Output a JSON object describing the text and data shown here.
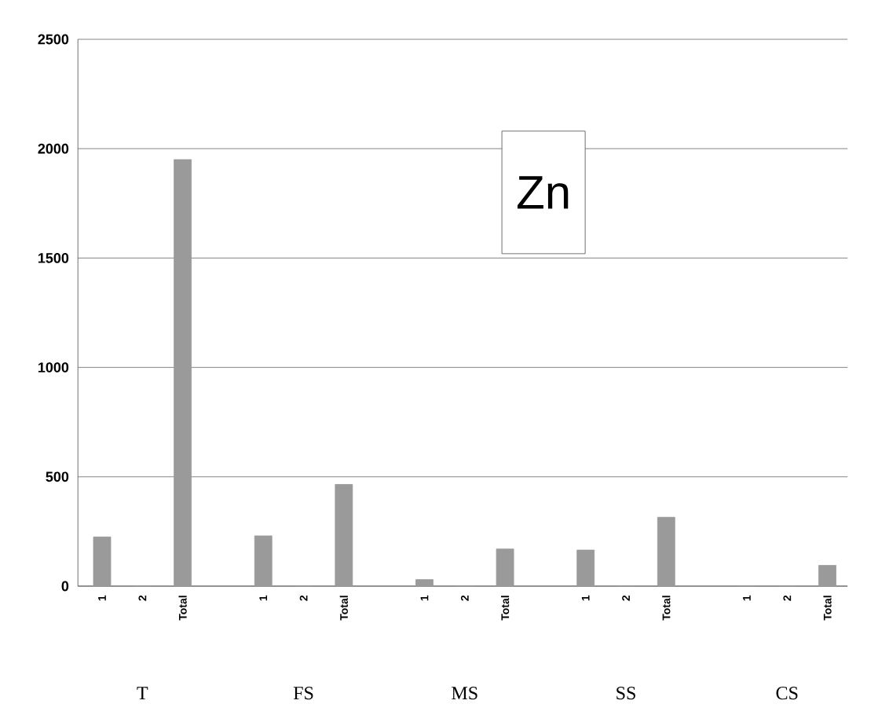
{
  "chart_data": {
    "type": "bar",
    "title": "Zn",
    "categories": [
      "1",
      "2",
      "Total",
      null,
      "1",
      "2",
      "Total",
      null,
      "1",
      "2",
      "Total",
      null,
      "1",
      "2",
      "Total",
      null,
      "1",
      "2",
      "Total"
    ],
    "values": [
      225,
      0,
      1950,
      null,
      230,
      0,
      465,
      null,
      30,
      0,
      170,
      null,
      165,
      0,
      315,
      null,
      0,
      0,
      95
    ],
    "color": "#9a9a9a",
    "annotations": [
      "T",
      "FS",
      "MS",
      "SS",
      "CS"
    ],
    "ylim": [
      0,
      2500
    ],
    "yticks": [
      0,
      500,
      1000,
      1500,
      2000,
      2500
    ],
    "grid": "y"
  }
}
